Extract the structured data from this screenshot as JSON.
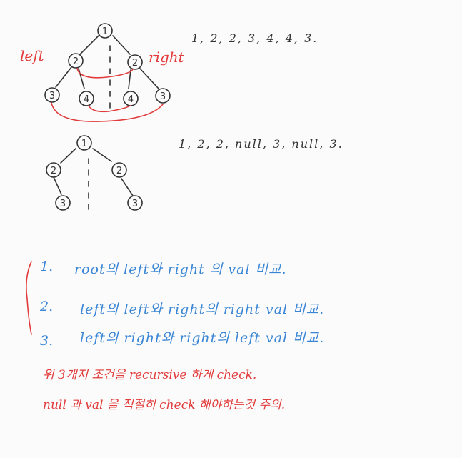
{
  "colors": {
    "ink": "#333333",
    "red": "#e23b3b",
    "blue": "#3a86d6",
    "paper": "#fbfbfb"
  },
  "tree1": {
    "label_left": "left",
    "label_right": "right",
    "nodes": [
      "1",
      "2",
      "2",
      "3",
      "4",
      "4",
      "3"
    ],
    "sequence": "1, 2, 2, 3, 4, 4, 3."
  },
  "tree2": {
    "nodes": [
      "1",
      "2",
      "2",
      "3",
      "3"
    ],
    "sequence": "1, 2, 2, null, 3, null, 3."
  },
  "notes": {
    "items": [
      {
        "num": "1.",
        "text": "root의 left와 right 의 val 비교."
      },
      {
        "num": "2.",
        "text": "left의 left와 right의 right val 비교."
      },
      {
        "num": "3.",
        "text": "left의 right와 right의 left val 비교."
      }
    ],
    "footer_line1": "위 3개지 조건을 recursive 하게 check.",
    "footer_line2": "null 과 val 을 적절히 check 해야하는것 주의."
  }
}
